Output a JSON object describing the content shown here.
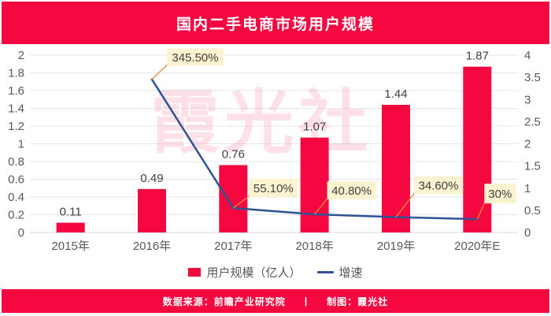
{
  "title": "国内二手电商市场用户规模",
  "watermark": "霞光社",
  "legend": {
    "items": [
      {
        "label": "用户规模（亿人）",
        "swatch": "bar"
      },
      {
        "label": "增速",
        "swatch": "line"
      }
    ]
  },
  "footer": {
    "source": "数据来源：前瞻产业研究院",
    "separator": "|",
    "credit": "制图：霞光社"
  },
  "colors": {
    "brand_red": "#F5073F",
    "line_blue": "#2E5395",
    "leader_orange": "#ED8B3C",
    "callout_bg": "#FDF3D1",
    "value_text": "#3F3F3F",
    "axis_text": "#595959",
    "gridline": "#E7E7E7",
    "baseline": "#DADADA",
    "watermark_pink": "rgba(245,7,63,0.12)"
  },
  "chart_data": {
    "type": "combo-bar-line",
    "title": "国内二手电商市场用户规模",
    "categories": [
      "2015年",
      "2016年",
      "2017年",
      "2018年",
      "2019年",
      "2020年E"
    ],
    "series": [
      {
        "name": "用户规模（亿人）",
        "type": "bar",
        "axis": "left",
        "values": [
          0.11,
          0.49,
          0.76,
          1.07,
          1.44,
          1.87
        ],
        "labels": [
          "0.11",
          "0.49",
          "0.76",
          "1.07",
          "1.44",
          "1.87"
        ]
      },
      {
        "name": "增速",
        "type": "line",
        "axis": "right",
        "values": [
          null,
          3.455,
          0.551,
          0.408,
          0.346,
          0.3
        ],
        "labels": [
          null,
          "345.50%",
          "55.10%",
          "40.80%",
          "34.60%",
          "30%"
        ]
      }
    ],
    "left_axis": {
      "min": 0,
      "max": 2,
      "tick_labels": [
        "0",
        "0.2",
        "0.4",
        "0.6",
        "0.8",
        "1",
        "1.2",
        "1.4",
        "1.6",
        "1.8",
        "2"
      ]
    },
    "right_axis": {
      "min": 0,
      "max": 4,
      "tick_labels": [
        "0",
        "0.5",
        "1",
        "1.5",
        "2",
        "2.5",
        "3",
        "3.5",
        "4"
      ]
    },
    "grid": true,
    "legend_position": "bottom"
  }
}
